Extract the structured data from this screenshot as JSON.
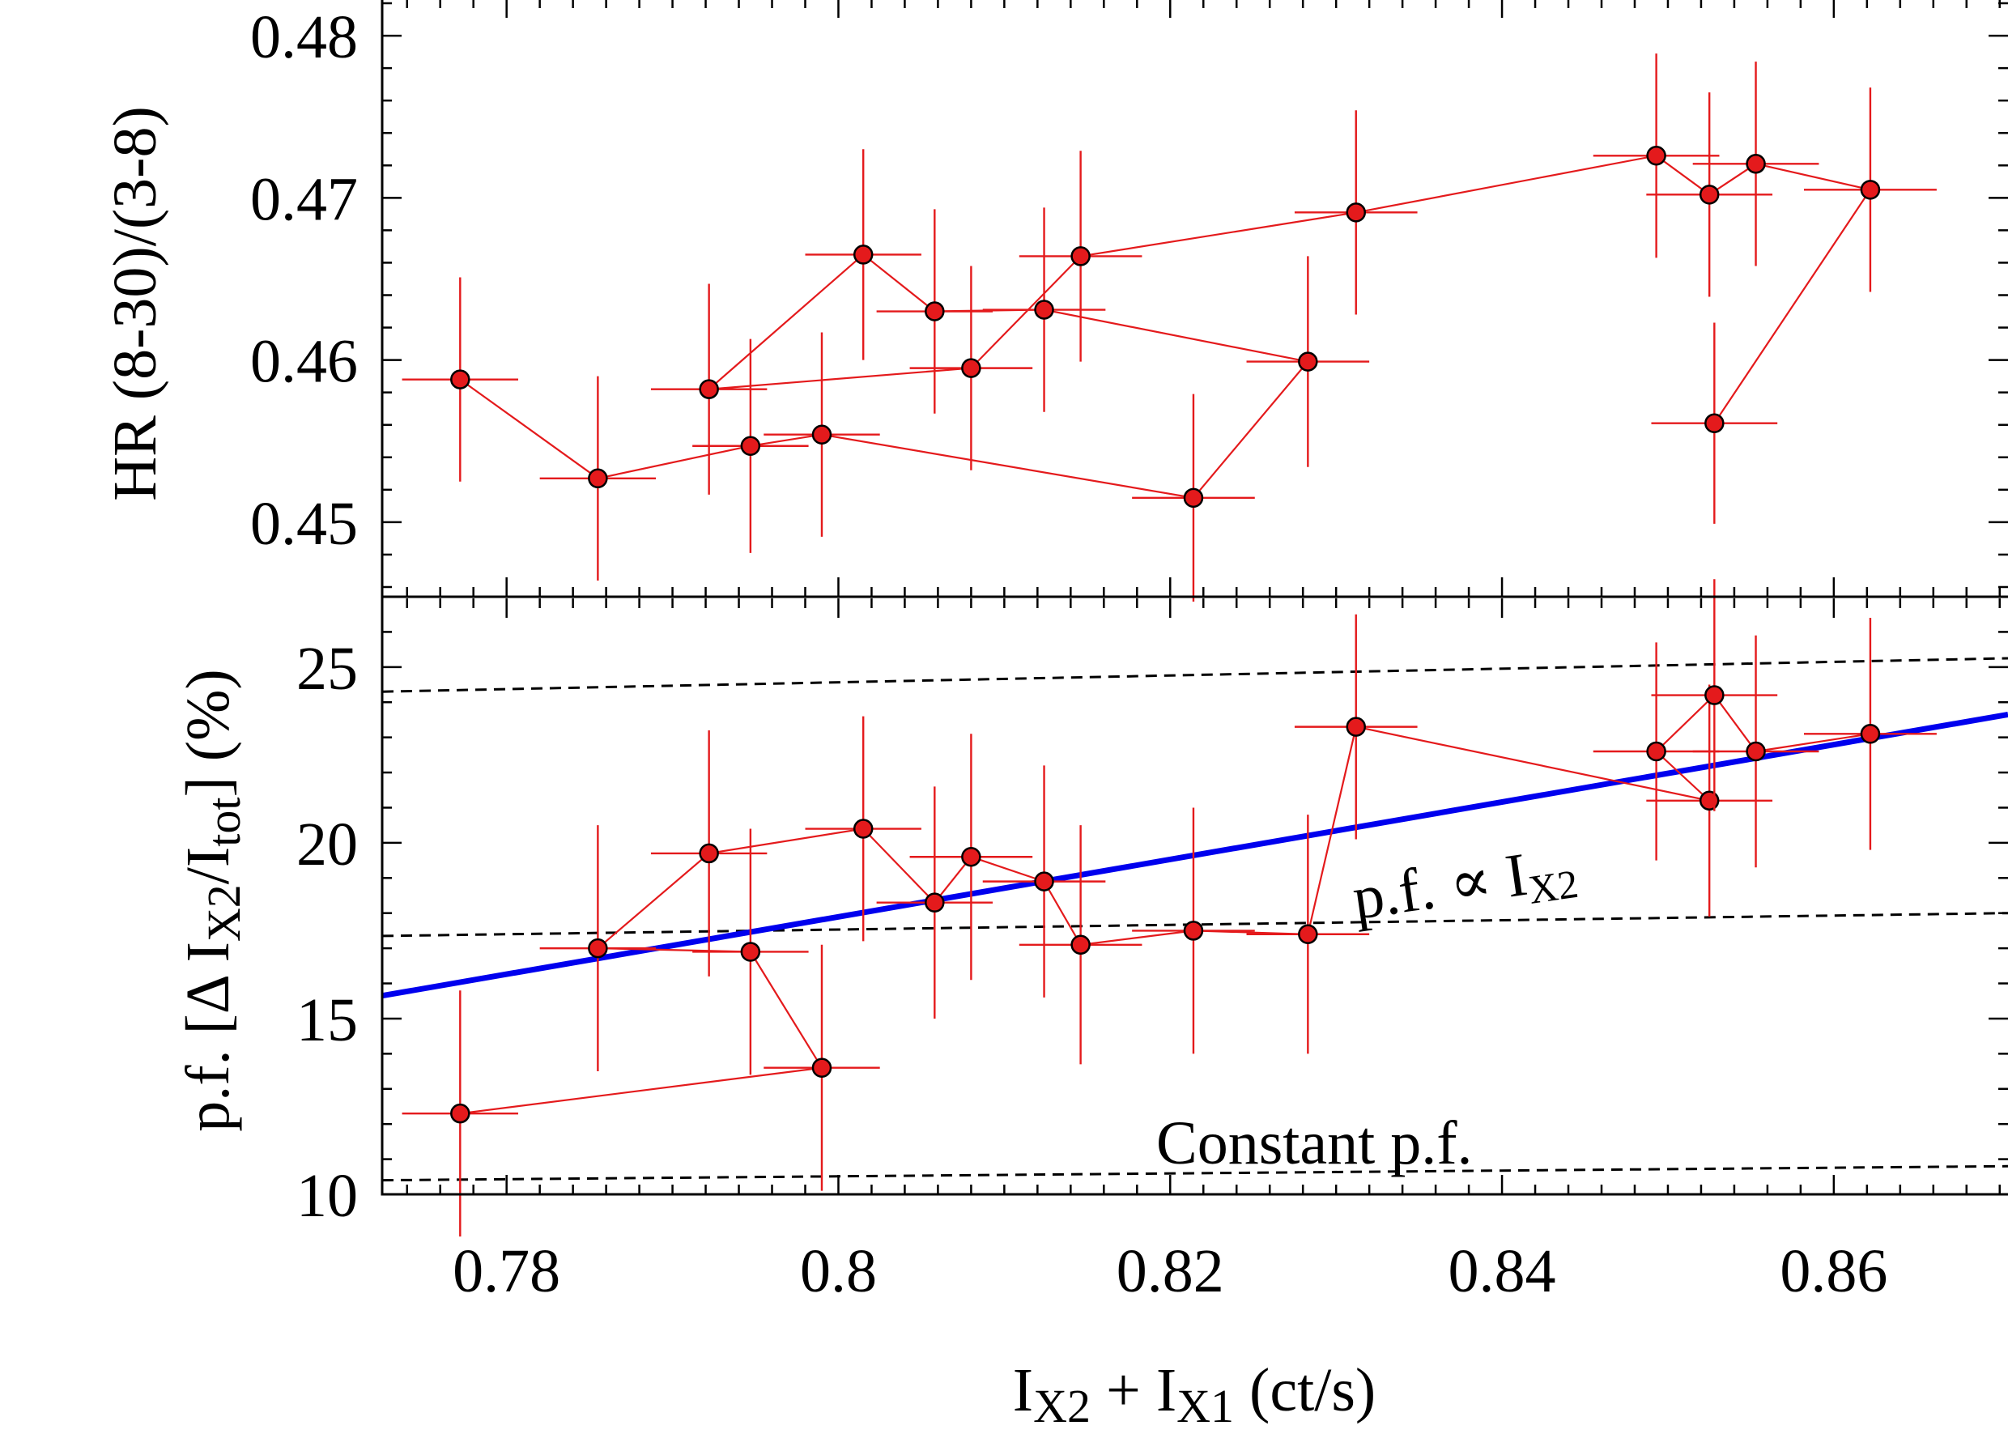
{
  "chart_data": [
    {
      "type": "scatter",
      "panel": "top",
      "ylabel": "HR (8-30)/(3-8)",
      "xlim": [
        0.7725,
        0.8705
      ],
      "ylim": [
        0.4454,
        0.4824
      ],
      "ytick_values": [
        0.45,
        0.46,
        0.47,
        0.48
      ],
      "ytick_labels": [
        "0.45",
        "0.46",
        "0.47",
        "0.48"
      ],
      "connected": true,
      "series": [
        {
          "name": "HR",
          "points": [
            {
              "x": 0.7772,
              "y": 0.4588,
              "xerr": 0.0035,
              "yerr": 0.0063
            },
            {
              "x": 0.7855,
              "y": 0.4527,
              "xerr": 0.0035,
              "yerr": 0.0063
            },
            {
              "x": 0.7947,
              "y": 0.4547,
              "xerr": 0.0035,
              "yerr": 0.0066
            },
            {
              "x": 0.799,
              "y": 0.4554,
              "xerr": 0.0035,
              "yerr": 0.0063
            },
            {
              "x": 0.8214,
              "y": 0.4515,
              "xerr": 0.0037,
              "yerr": 0.0064
            },
            {
              "x": 0.8283,
              "y": 0.4599,
              "xerr": 0.0037,
              "yerr": 0.0065
            },
            {
              "x": 0.8124,
              "y": 0.4631,
              "xerr": 0.0037,
              "yerr": 0.0063
            },
            {
              "x": 0.8058,
              "y": 0.463,
              "xerr": 0.0035,
              "yerr": 0.0063
            },
            {
              "x": 0.8015,
              "y": 0.4665,
              "xerr": 0.0035,
              "yerr": 0.0065
            },
            {
              "x": 0.7922,
              "y": 0.4582,
              "xerr": 0.0035,
              "yerr": 0.0065
            },
            {
              "x": 0.808,
              "y": 0.4595,
              "xerr": 0.0037,
              "yerr": 0.0063
            },
            {
              "x": 0.8146,
              "y": 0.4664,
              "xerr": 0.0037,
              "yerr": 0.0065
            },
            {
              "x": 0.8312,
              "y": 0.4691,
              "xerr": 0.0037,
              "yerr": 0.0063
            },
            {
              "x": 0.8493,
              "y": 0.4726,
              "xerr": 0.0038,
              "yerr": 0.0063
            },
            {
              "x": 0.8525,
              "y": 0.4702,
              "xerr": 0.0038,
              "yerr": 0.0063
            },
            {
              "x": 0.8553,
              "y": 0.4721,
              "xerr": 0.0038,
              "yerr": 0.0063
            },
            {
              "x": 0.8622,
              "y": 0.4705,
              "xerr": 0.004,
              "yerr": 0.0063
            },
            {
              "x": 0.8528,
              "y": 0.4561,
              "xerr": 0.0038,
              "yerr": 0.0062
            }
          ]
        }
      ]
    },
    {
      "type": "scatter",
      "panel": "bottom",
      "ylabel": "p.f. [Δ I_X2/I_tot] (%)",
      "xlabel": "I_X2 + I_X1 (ct/s)",
      "xlim": [
        0.7725,
        0.8705
      ],
      "ylim": [
        10,
        27
      ],
      "xtick_values": [
        0.78,
        0.8,
        0.82,
        0.84,
        0.86
      ],
      "xtick_labels": [
        "0.78",
        "0.8",
        "0.82",
        "0.84",
        "0.86"
      ],
      "ytick_values": [
        10,
        15,
        20,
        25
      ],
      "ytick_labels": [
        "10",
        "15",
        "20",
        "25"
      ],
      "connected": true,
      "series": [
        {
          "name": "pulsed fraction",
          "points": [
            {
              "x": 0.7772,
              "y": 12.3,
              "xerr": 0.0035,
              "yerr": 3.5
            },
            {
              "x": 0.799,
              "y": 13.6,
              "xerr": 0.0035,
              "yerr": 3.5
            },
            {
              "x": 0.7947,
              "y": 16.9,
              "xerr": 0.0035,
              "yerr": 3.5
            },
            {
              "x": 0.7855,
              "y": 17.0,
              "xerr": 0.0035,
              "yerr": 3.5
            },
            {
              "x": 0.7922,
              "y": 19.7,
              "xerr": 0.0035,
              "yerr": 3.5
            },
            {
              "x": 0.8015,
              "y": 20.4,
              "xerr": 0.0035,
              "yerr": 3.2
            },
            {
              "x": 0.8058,
              "y": 18.3,
              "xerr": 0.0035,
              "yerr": 3.3
            },
            {
              "x": 0.808,
              "y": 19.6,
              "xerr": 0.0037,
              "yerr": 3.5
            },
            {
              "x": 0.8124,
              "y": 18.9,
              "xerr": 0.0037,
              "yerr": 3.3
            },
            {
              "x": 0.8146,
              "y": 17.1,
              "xerr": 0.0037,
              "yerr": 3.4
            },
            {
              "x": 0.8214,
              "y": 17.5,
              "xerr": 0.0037,
              "yerr": 3.5
            },
            {
              "x": 0.8283,
              "y": 17.4,
              "xerr": 0.0037,
              "yerr": 3.4
            },
            {
              "x": 0.8312,
              "y": 23.3,
              "xerr": 0.0037,
              "yerr": 3.2
            },
            {
              "x": 0.8525,
              "y": 21.2,
              "xerr": 0.0038,
              "yerr": 3.3
            },
            {
              "x": 0.8493,
              "y": 22.6,
              "xerr": 0.0038,
              "yerr": 3.1
            },
            {
              "x": 0.8528,
              "y": 24.2,
              "xerr": 0.0038,
              "yerr": 3.3
            },
            {
              "x": 0.8553,
              "y": 22.6,
              "xerr": 0.0038,
              "yerr": 3.3
            },
            {
              "x": 0.8622,
              "y": 23.1,
              "xerr": 0.004,
              "yerr": 3.3
            }
          ]
        }
      ],
      "lines": [
        {
          "name": "constant-pf-upper",
          "style": "dashed",
          "color": "#000000",
          "x": [
            0.7725,
            0.8705
          ],
          "y": [
            24.3,
            25.25
          ]
        },
        {
          "name": "constant-pf-middle",
          "style": "dashed",
          "color": "#000000",
          "x": [
            0.7725,
            0.8705
          ],
          "y": [
            17.35,
            18.0
          ]
        },
        {
          "name": "constant-pf-lower",
          "style": "dashed",
          "color": "#000000",
          "x": [
            0.7725,
            0.8705
          ],
          "y": [
            10.4,
            10.8
          ]
        },
        {
          "name": "pf-proportional-fit",
          "style": "solid",
          "color": "#0000ee",
          "x": [
            0.7725,
            0.8705
          ],
          "y": [
            15.65,
            23.65
          ]
        }
      ],
      "annotations": {
        "fit_label_main": "p.f. ∝ I",
        "fit_label_sub": "X2",
        "constant_label": "Constant p.f."
      }
    }
  ],
  "axis_text": {
    "top_ylabel": "HR (8-30)/(3-8)",
    "bottom_ylabel": {
      "part1": "p.f. [Δ I",
      "sub1": "X2",
      "part2": "/I",
      "sub2": "tot",
      "part3": "] (%)"
    },
    "xlabel": {
      "part1": "I",
      "sub1": "X2",
      "part2": " + I",
      "sub2": "X1",
      "part3": " (ct/s)"
    }
  },
  "colors": {
    "points": "#e41a1c",
    "fit": "#0000ee",
    "reference": "#000000"
  }
}
